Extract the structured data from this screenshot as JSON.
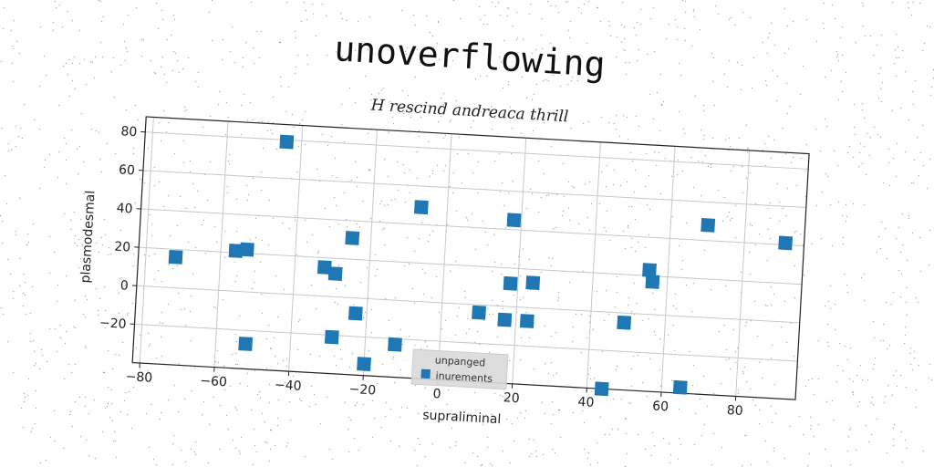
{
  "chart_data": {
    "type": "scatter",
    "title": "unoverflowing",
    "subtitle": "H rescind andreaca thrill",
    "xlabel": "supraliminal",
    "ylabel": "plasmodesmal",
    "xlim": [
      -82,
      96
    ],
    "ylim": [
      -40,
      88
    ],
    "x_ticks": [
      -80,
      -60,
      -40,
      -20,
      0,
      20,
      40,
      60,
      80
    ],
    "y_ticks": [
      -20,
      0,
      20,
      40,
      60,
      80
    ],
    "grid": true,
    "legend": {
      "title": "unpanged",
      "placement": "lower-center",
      "entries": [
        "inurements"
      ]
    },
    "series": [
      {
        "name": "inurements",
        "color": "#1f77b4",
        "marker": "square",
        "points": [
          [
            -72,
            16
          ],
          [
            -56,
            21
          ],
          [
            -53,
            22
          ],
          [
            -52,
            -27
          ],
          [
            -44,
            79
          ],
          [
            -32,
            15
          ],
          [
            -29,
            12
          ],
          [
            -29,
            -21
          ],
          [
            -25,
            31
          ],
          [
            -23,
            -8
          ],
          [
            -20,
            -34
          ],
          [
            -12,
            -23
          ],
          [
            -7,
            49
          ],
          [
            10,
            -4
          ],
          [
            17,
            -7
          ],
          [
            18,
            12
          ],
          [
            18,
            45
          ],
          [
            23,
            -7
          ],
          [
            24,
            13
          ],
          [
            44,
            -40
          ],
          [
            49,
            -5
          ],
          [
            55,
            23
          ],
          [
            56,
            17
          ],
          [
            65,
            -37
          ],
          [
            70,
            48
          ],
          [
            91,
            41
          ]
        ]
      }
    ]
  }
}
